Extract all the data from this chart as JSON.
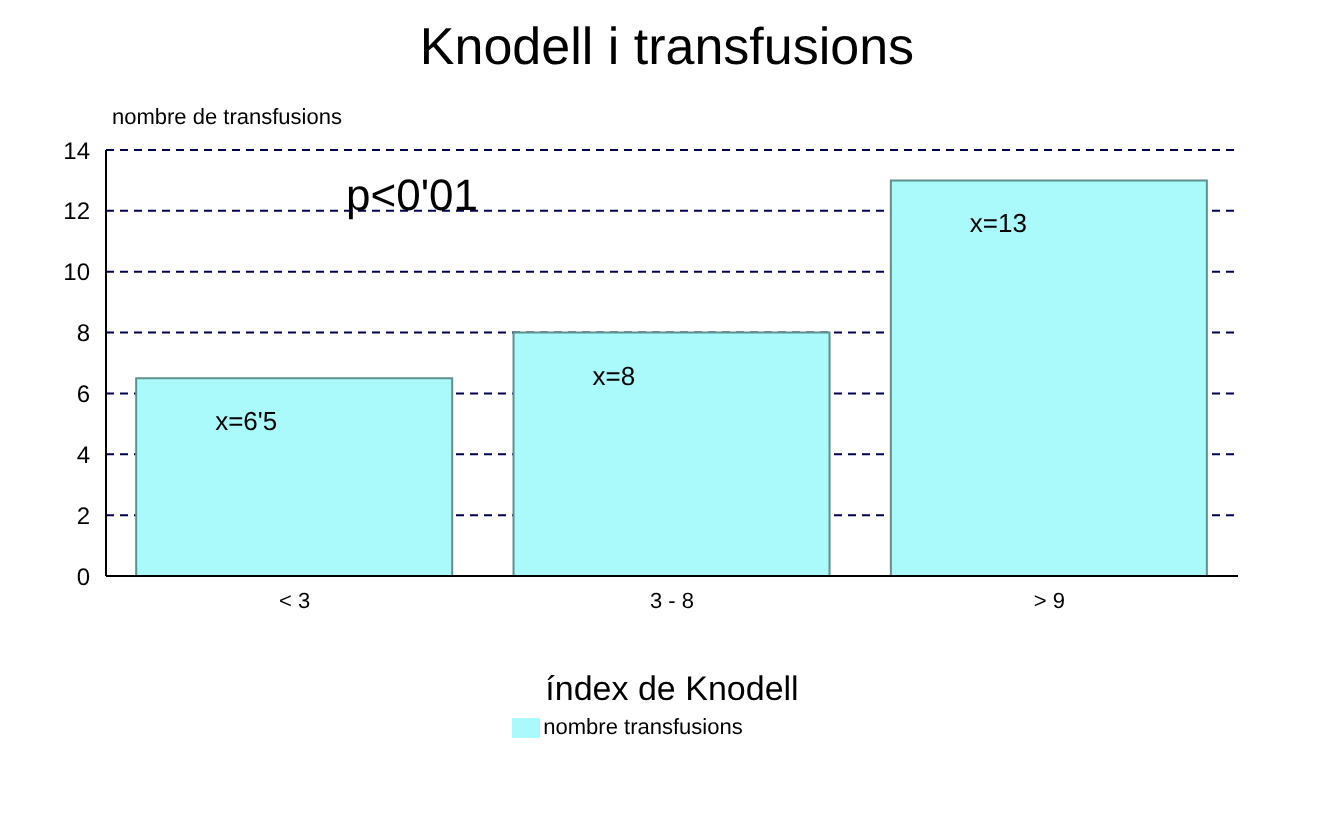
{
  "chart_data": {
    "type": "bar",
    "title": "Knodell i transfusions",
    "ylabel": "nombre de transfusions",
    "xlabel": "índex de Knodell",
    "categories": [
      "< 3",
      "3 - 8",
      "> 9"
    ],
    "series": [
      {
        "name": "nombre transfusions",
        "color": "#aaf9fb",
        "values": [
          6.5,
          8,
          13
        ],
        "value_labels": [
          "x=6'5",
          "x=8",
          "x=13"
        ]
      }
    ],
    "ylim": [
      0,
      14
    ],
    "yticks": [
      0,
      2,
      4,
      6,
      8,
      10,
      12,
      14
    ],
    "grid": "y",
    "legend": "bottom",
    "annotations": [
      "p<0'01"
    ]
  }
}
